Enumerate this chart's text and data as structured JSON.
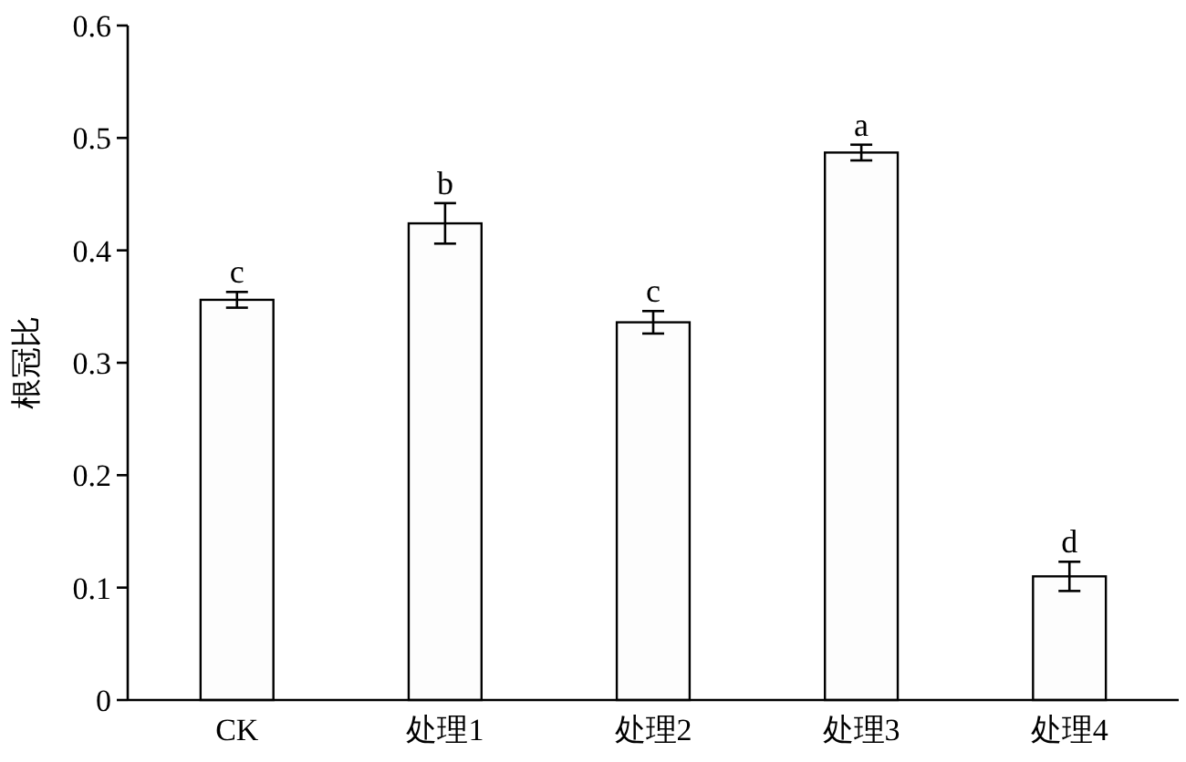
{
  "chart_data": {
    "type": "bar",
    "ylabel": "根冠比",
    "categories": [
      "CK",
      "处理1",
      "处理2",
      "处理3",
      "处理4"
    ],
    "values": [
      0.356,
      0.424,
      0.336,
      0.487,
      0.11
    ],
    "errors": [
      0.007,
      0.018,
      0.01,
      0.007,
      0.013
    ],
    "color": "#fdfdfd",
    "ylim": [
      0,
      0.6
    ],
    "yticks": [
      0,
      0.1,
      0.2,
      0.3,
      0.4,
      0.5,
      0.6
    ],
    "grid": false,
    "annotations": [
      {
        "text": "c",
        "x": "CK",
        "y": 0.363
      },
      {
        "text": "b",
        "x": "处理1",
        "y": 0.442
      },
      {
        "text": "c",
        "x": "处理2",
        "y": 0.346
      },
      {
        "text": "a",
        "x": "处理3",
        "y": 0.494
      },
      {
        "text": "d",
        "x": "处理4",
        "y": 0.123
      }
    ]
  }
}
